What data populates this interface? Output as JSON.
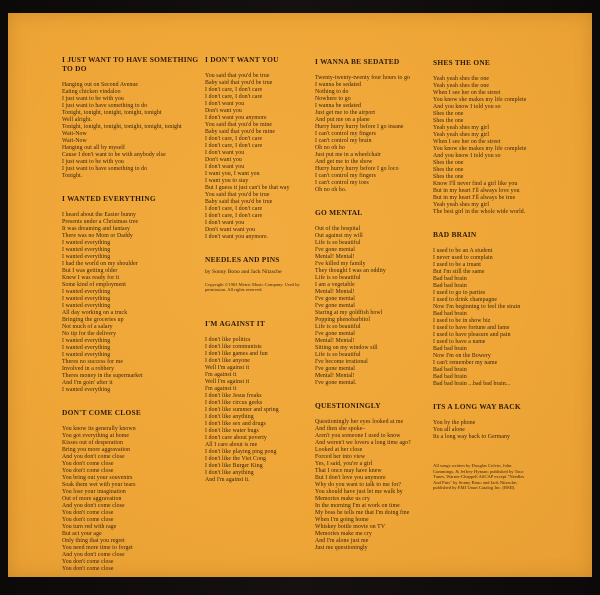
{
  "album_insert": {
    "kind": "lyrics-sheet",
    "background_color": "#efa637",
    "frame_color": "#0c0a09",
    "text_color": "#32200e"
  },
  "columns": [
    {
      "name": "column-1",
      "sections": [
        {
          "title": "I JUST WANT TO HAVE SOMETHING TO DO",
          "lines": [
            "Hanging out on Second Avenue",
            "Eating chicken vindaloo",
            "I just want to be with you",
            "I just want to have something to do",
            "Tonight, tonight, tonight, tonight, tonight",
            "Well alright.",
            "Tonight, tonight, tonight, tonight, tonight, tonight",
            "Wait-Now",
            "Wait-Now",
            "Hanging out all by myself",
            "Cause I don't want to be with anybody else",
            "I just want to be with you",
            "I just want to have something to do",
            "Tonight."
          ]
        },
        {
          "title": "I WANTED EVERYTHING",
          "lines": [
            "I heard about the Easter bunny",
            "Presents under a Christmas tree",
            "It was dreaming and fantasy",
            "There was no Mom or Daddy",
            "I wanted everything",
            "I wanted everything",
            "I wanted everything",
            "I had the world on my shoulder",
            "But I was getting older",
            "Knew I was ready for it",
            "Some kind of employment",
            "I wanted everything",
            "I wanted everything",
            "I wanted everything",
            "All day working on a truck",
            "Bringing the groceries up",
            "Not much of a salary",
            "No tip for the delivery",
            "I wanted everything",
            "I wanted everything",
            "I wanted everything",
            "Theres no success for me",
            "Involved in a robbery",
            "Theres money in the supermarket",
            "And I'm goin' after it",
            "I wanted everything"
          ]
        },
        {
          "title": "DON'T COME CLOSE",
          "lines": [
            "You know its generally known",
            "You got everything at home",
            "Kisses out of desperation",
            "Bring you more aggravation",
            "And you don't come close",
            "You don't come close",
            "You don't come close",
            "You bring out your souvenirs",
            "Soak them wet with your tears",
            "You lose your imagination",
            "Out of more aggravation",
            "And you don't come close",
            "You don't come close",
            "You don't come close",
            "You turn red with rage",
            "But act your age",
            "Only thing that you regret",
            "You need more time to forget",
            "And you don't come close",
            "You don't come close",
            "You don't come close"
          ]
        }
      ]
    },
    {
      "name": "column-2",
      "sections": [
        {
          "title": "I DON'T WANT YOU",
          "lines": [
            "You said that you'd be true",
            "Baby said that you'd be true",
            "I don't care, I don't care",
            "I don't care, I don't care",
            "I don't want you",
            "Don't want you",
            "I don't want you anymore",
            "You said that you'd be mine",
            "Baby said that you'd be mine",
            "I don't care, I don't care",
            "I don't care, I don't care",
            "I don't want you",
            "Don't want you",
            "I don't want you",
            "I want you, I want you",
            "I want you to stay",
            "But I guess it just can't be that way",
            "You said that you'd be true",
            "Baby said that you'd be true",
            "I don't care, I don't care",
            "I don't care, I don't care",
            "I don't want you",
            "Don't want want you",
            "I don't want you anymore."
          ]
        },
        {
          "title": "NEEDLES AND PINS",
          "credit": "by Sonny Bono and Jack Nitzsche",
          "small_print": "Copyright ©1963 Metric Music Company. Used by permission. All rights reserved.",
          "lines": []
        },
        {
          "title": "I'M AGAINST IT",
          "lines": [
            "I don't like politics",
            "I don't like communists",
            "I don't like games and fun",
            "I don't like anyone",
            "Well I'm against it",
            "I'm against it",
            "Well I'm against it",
            "I'm against it",
            "I don't like Jesus freaks",
            "I don't like circus geeks",
            "I don't like summer and spring",
            "I don't like anything",
            "I don't like sex and drugs",
            "I don't like water bugs",
            "I don't care about poverty",
            "All I care about is me",
            "I don't like playing ping pong",
            "I don't like the Viet Cong",
            "I don't like Burger King",
            "I don't like anything",
            "And I'm against it."
          ]
        }
      ]
    },
    {
      "name": "column-3",
      "sections": [
        {
          "title": "I WANNA BE SEDATED",
          "lines": [
            "Twenty-twenty-twenty four hours to go",
            "I wanna be sedated",
            "Nothing to do",
            "Nowhere to go",
            "I wanna be sedated",
            "Just get me to the airport",
            "And put me on a plane",
            "Hurry hurry hurry before I go insane",
            "I can't control my fingers",
            "I can't control my brain",
            "Oh no oh ho",
            "Just put me in a wheelchair",
            "And get me to the show",
            "Hurry hurry hurry before I go loco",
            "I can't control my fingers",
            "I can't control my toes",
            "Oh no oh ho."
          ]
        },
        {
          "title": "GO MENTAL",
          "lines": [
            "Out of the hospital",
            "Out against my will",
            "Life is so beautiful",
            "I've gone mental",
            "Mental! Mental!",
            "I've killed my family",
            "They thought I was an oddity",
            "Life is so beautiful",
            "I am a vegetable",
            "Mental! Mental!",
            "I've gone mental",
            "I've gone mental",
            "Staring at my goldfish bowl",
            "Popping phenobarbitol",
            "Life is so beautiful",
            "I've gone mental",
            "Mental! Mental!",
            "Sitting on my window sill",
            "Life is so beautiful",
            "I've become irrational",
            "I've gone mental",
            "Mental! Mental!",
            "I've gone mental."
          ]
        },
        {
          "title": "QUESTIONINGLY",
          "lines": [
            "Questioningly her eyes looked at me",
            "And then she spoke–",
            "Aren't you someone I used to know",
            "And weren't we lovers a long time ago?",
            "Looked at her close",
            "Forced her into view",
            "Yes, I said, you're a girl",
            "That I once may have knew",
            "But I don't love you anymore",
            "Why do you want to talk to me for?",
            "You should have just let me walk by",
            "Memories make us cry",
            "In the morning I'm at work on time",
            "My boss he tells me that I'm doing fine",
            "When I'm going home",
            "Whiskey bottle movie on TV",
            "Memories make me cry",
            "And I'm alone just me",
            "Just me questioningly"
          ]
        }
      ]
    },
    {
      "name": "column-4",
      "sections": [
        {
          "title": "SHES THE ONE",
          "lines": [
            "Yeah yeah shes the one",
            "Yeah yeah shes the one",
            "When I see her on the street",
            "You know she makes my life complete",
            "And you know I told you so",
            "Shes the one",
            "Shes the one",
            "Yeah yeah shes my girl",
            "Yeah yeah shes my girl",
            "When I see her on the street",
            "You know she makes my life complete",
            "And you know I told you so",
            "Shes the one",
            "Shes the one",
            "Shes the one",
            "Know I'll never find a girl like you",
            "But in my heart I'll always love you",
            "But in my heart I'll always be true",
            "Yeah yeah shes my girl",
            "The best girl in the whole wide world."
          ]
        },
        {
          "title": "BAD BRAIN",
          "lines": [
            "I used to be an A student",
            "I never used to complain",
            "I used to be a truant",
            "But I'm still the same",
            "Bad bad brain",
            "Bad bad brain",
            "I used to go to parties",
            "I used to drink champagne",
            "Now I'm beginning to feel the strain",
            "Bad bad brain",
            "I used to be in show biz",
            "I used to have fortune and fame",
            "I used to have pleasure and pain",
            "I used to have a name",
            "Bad bad brain",
            "Now I'm on the Bowery",
            "I can't remember my name",
            "Bad bad brain",
            "Bad bad brain",
            "Bad bad brain ...bad bad brain..."
          ]
        },
        {
          "title": "ITS A LONG WAY BACK",
          "lines": [
            "You by the phone",
            "You all alone",
            "Its a long way back to Germany"
          ],
          "footnote": "All songs written by Douglas Colvin, John Cummings, & Jeffrey Hyman; published by Taco Tunes, Warner-Chappell ASCAP except \"Needles And Pins\" by Sonny Bono and Jack Nitzsche; published by EMI Unart Catalog Inc. (BMI)."
        }
      ]
    }
  ]
}
